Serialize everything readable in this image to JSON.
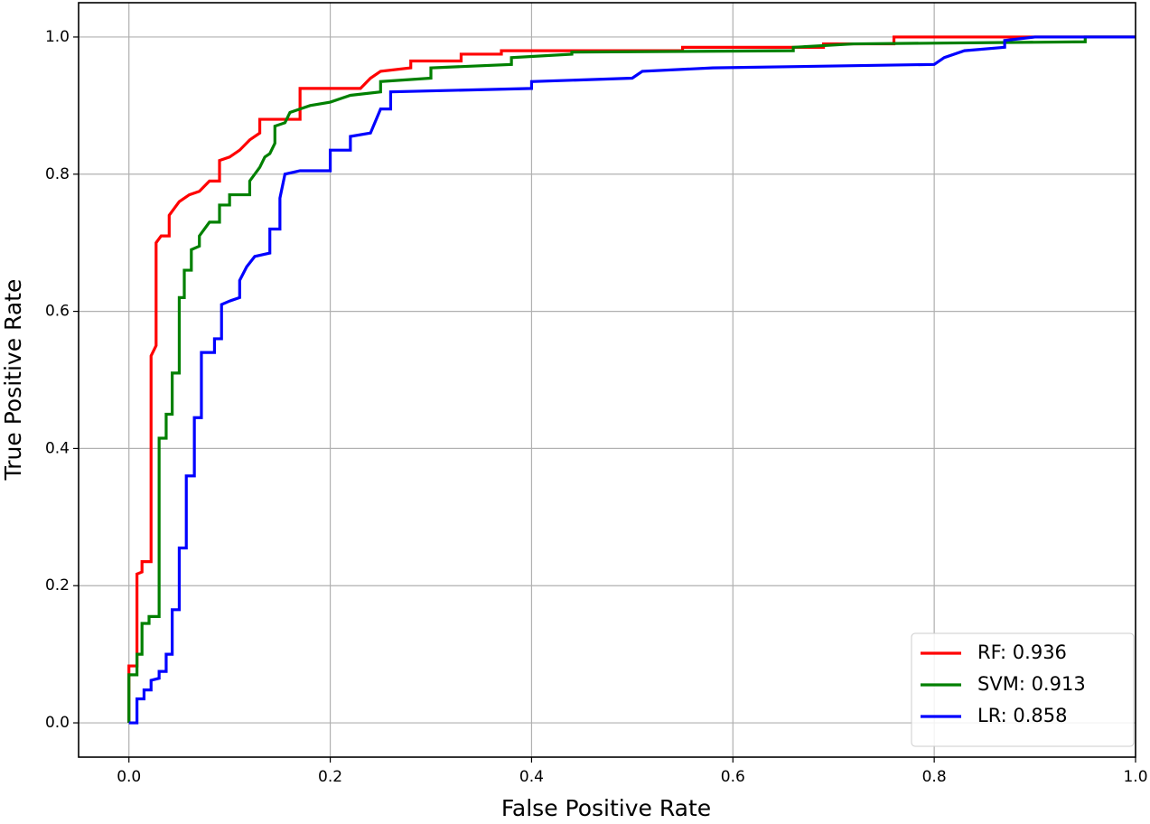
{
  "chart_data": {
    "type": "line",
    "x_label": "False Positive Rate",
    "y_label": "True Positive Rate",
    "xlim": [
      -0.05,
      1.0
    ],
    "ylim": [
      -0.05,
      1.05
    ],
    "xticks": [
      {
        "value": 0,
        "label": "0.0"
      },
      {
        "value": 0.2,
        "label": "0.2"
      },
      {
        "value": 0.4,
        "label": "0.4"
      },
      {
        "value": 0.6,
        "label": "0.6"
      },
      {
        "value": 0.8,
        "label": "0.8"
      },
      {
        "value": 1,
        "label": "1.0"
      }
    ],
    "yticks": [
      {
        "value": 0,
        "label": "0.0"
      },
      {
        "value": 0.2,
        "label": "0.2"
      },
      {
        "value": 0.4,
        "label": "0.4"
      },
      {
        "value": 0.6,
        "label": "0.6"
      },
      {
        "value": 0.8,
        "label": "0.8"
      },
      {
        "value": 1,
        "label": "1.0"
      }
    ],
    "grid": true,
    "legend": "lower right",
    "series": [
      {
        "name": "RF: 0.936",
        "color": "#ff0000",
        "x": [
          0,
          0,
          0.008,
          0.008,
          0.013,
          0.013,
          0.022,
          0.022,
          0.027,
          0.027,
          0.032,
          0.04,
          0.04,
          0.045,
          0.05,
          0.06,
          0.07,
          0.08,
          0.09,
          0.09,
          0.1,
          0.11,
          0.12,
          0.13,
          0.13,
          0.17,
          0.17,
          0.23,
          0.24,
          0.25,
          0.28,
          0.28,
          0.33,
          0.33,
          0.37,
          0.37,
          0.55,
          0.55,
          0.69,
          0.69,
          0.76,
          0.76,
          1
        ],
        "values": [
          0,
          0.083,
          0.083,
          0.217,
          0.22,
          0.235,
          0.235,
          0.535,
          0.55,
          0.7,
          0.71,
          0.71,
          0.74,
          0.75,
          0.76,
          0.77,
          0.775,
          0.79,
          0.79,
          0.82,
          0.825,
          0.835,
          0.85,
          0.86,
          0.88,
          0.88,
          0.925,
          0.925,
          0.94,
          0.95,
          0.955,
          0.965,
          0.965,
          0.975,
          0.975,
          0.98,
          0.98,
          0.985,
          0.985,
          0.99,
          0.99,
          1,
          1
        ]
      },
      {
        "name": "SVM: 0.913",
        "color": "#008000",
        "x": [
          0,
          0,
          0.008,
          0.008,
          0.013,
          0.013,
          0.02,
          0.02,
          0.03,
          0.03,
          0.037,
          0.037,
          0.043,
          0.043,
          0.05,
          0.05,
          0.055,
          0.055,
          0.062,
          0.062,
          0.07,
          0.07,
          0.08,
          0.09,
          0.09,
          0.1,
          0.1,
          0.12,
          0.12,
          0.13,
          0.135,
          0.14,
          0.145,
          0.145,
          0.155,
          0.16,
          0.17,
          0.18,
          0.2,
          0.21,
          0.22,
          0.25,
          0.25,
          0.3,
          0.3,
          0.38,
          0.38,
          0.44,
          0.44,
          0.66,
          0.66,
          0.72,
          0.95,
          0.95,
          1
        ],
        "values": [
          0,
          0.07,
          0.07,
          0.1,
          0.1,
          0.145,
          0.145,
          0.155,
          0.155,
          0.415,
          0.415,
          0.45,
          0.45,
          0.51,
          0.51,
          0.62,
          0.62,
          0.66,
          0.66,
          0.69,
          0.695,
          0.71,
          0.73,
          0.73,
          0.755,
          0.755,
          0.77,
          0.77,
          0.79,
          0.81,
          0.825,
          0.83,
          0.845,
          0.87,
          0.875,
          0.89,
          0.895,
          0.9,
          0.905,
          0.91,
          0.915,
          0.92,
          0.935,
          0.94,
          0.955,
          0.96,
          0.97,
          0.975,
          0.978,
          0.98,
          0.985,
          0.99,
          0.993,
          1,
          1
        ]
      },
      {
        "name": "LR: 0.858",
        "color": "#0000ff",
        "x": [
          0,
          0.008,
          0.008,
          0.015,
          0.015,
          0.022,
          0.022,
          0.03,
          0.03,
          0.037,
          0.037,
          0.043,
          0.043,
          0.05,
          0.05,
          0.057,
          0.057,
          0.065,
          0.065,
          0.072,
          0.072,
          0.085,
          0.085,
          0.092,
          0.092,
          0.1,
          0.11,
          0.11,
          0.117,
          0.125,
          0.14,
          0.14,
          0.15,
          0.15,
          0.155,
          0.17,
          0.2,
          0.2,
          0.22,
          0.22,
          0.24,
          0.25,
          0.26,
          0.26,
          0.4,
          0.4,
          0.5,
          0.51,
          0.58,
          0.8,
          0.81,
          0.83,
          0.87,
          0.87,
          0.9,
          1
        ],
        "values": [
          0,
          0,
          0.035,
          0.035,
          0.048,
          0.048,
          0.062,
          0.065,
          0.075,
          0.075,
          0.1,
          0.1,
          0.165,
          0.165,
          0.255,
          0.255,
          0.36,
          0.36,
          0.445,
          0.445,
          0.54,
          0.54,
          0.56,
          0.56,
          0.61,
          0.615,
          0.62,
          0.645,
          0.665,
          0.68,
          0.685,
          0.72,
          0.72,
          0.765,
          0.8,
          0.805,
          0.805,
          0.835,
          0.835,
          0.855,
          0.86,
          0.895,
          0.895,
          0.92,
          0.925,
          0.935,
          0.94,
          0.95,
          0.955,
          0.96,
          0.97,
          0.98,
          0.985,
          0.995,
          1,
          1
        ]
      }
    ]
  }
}
